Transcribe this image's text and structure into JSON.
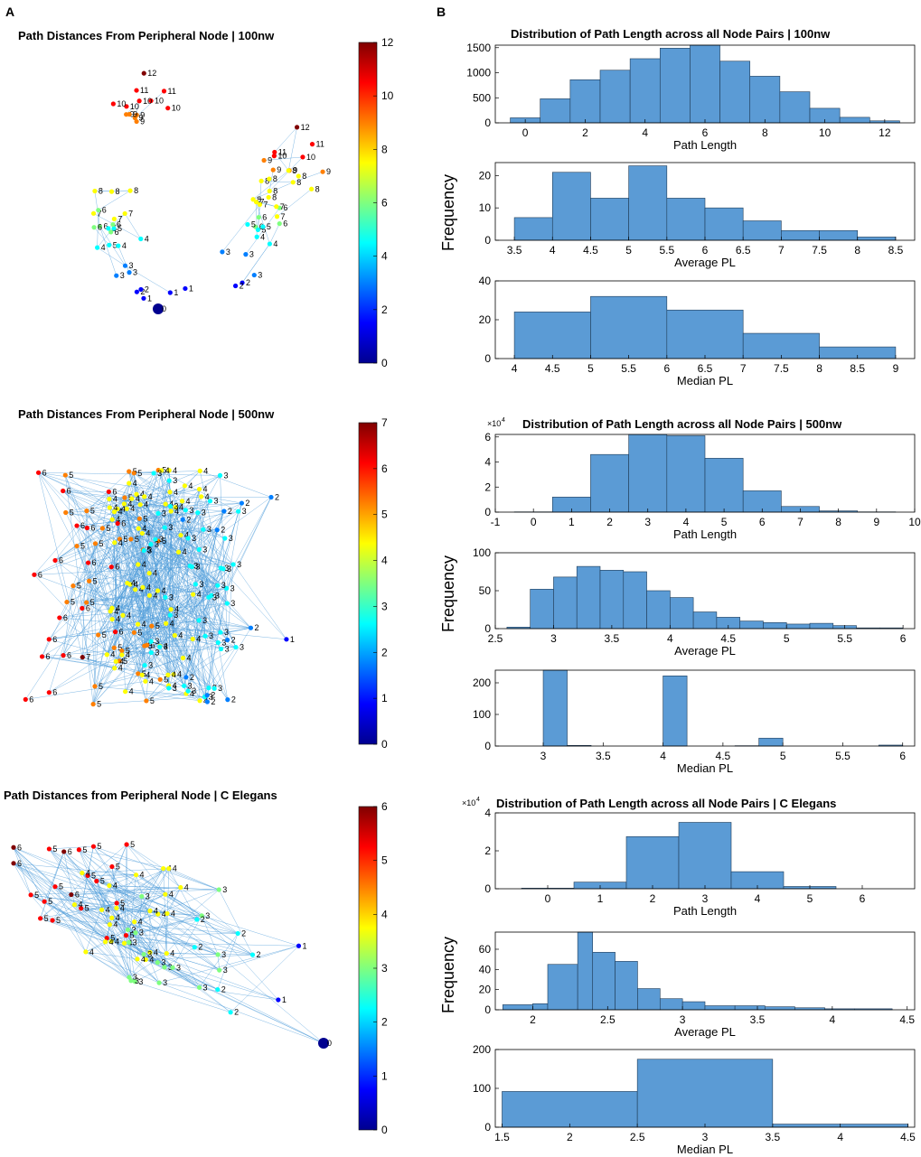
{
  "panel_labels": {
    "a": "A",
    "b": "B"
  },
  "colormap": [
    "#00008f",
    "#0000ff",
    "#007fff",
    "#00ffff",
    "#7fff7f",
    "#ffff00",
    "#ff7f00",
    "#ff0000",
    "#800000"
  ],
  "bar_color": "#5b9bd5",
  "edge_color": "#4a9ad8",
  "chart_data": [
    {
      "type": "network",
      "id": "net100",
      "title": "Path Distances From Peripheral Node | 100nw",
      "colorbar": {
        "min": 0,
        "max": 12,
        "ticks": [
          "0",
          "2",
          "4",
          "6",
          "8",
          "10",
          "12"
        ]
      },
      "node_labels": [
        "12",
        "11",
        "11",
        "10",
        "10",
        "10",
        "10",
        "10",
        "9",
        "9",
        "9",
        "9",
        "9",
        "8",
        "8",
        "8",
        "8",
        "8",
        "8",
        "8",
        "7",
        "7",
        "7",
        "7",
        "6",
        "6",
        "6",
        "6",
        "6",
        "6",
        "5",
        "5",
        "5",
        "5",
        "5",
        "5",
        "4",
        "4",
        "4",
        "4",
        "4",
        "3",
        "3",
        "3",
        "3",
        "3",
        "3",
        "2",
        "2",
        "2",
        "2",
        "1",
        "1",
        "1",
        "0",
        "12",
        "11",
        "11",
        "10",
        "10",
        "9",
        "9",
        "9",
        "9",
        "8",
        "8",
        "8",
        "8",
        "8",
        "7",
        "7",
        "7",
        "6",
        "6",
        "6"
      ]
    },
    {
      "type": "histogram",
      "id": "h100_pl",
      "title": "Distribution of Path Length across all Node Pairs | 100nw",
      "xlabel": "Path Length",
      "xlim": [
        -1,
        13
      ],
      "ylim": [
        0,
        1550
      ],
      "xticks": [
        0,
        2,
        4,
        6,
        8,
        10,
        12
      ],
      "yticks": [
        0,
        500,
        1000,
        1500
      ],
      "edges": [
        -0.5,
        0.5,
        1.5,
        2.5,
        3.5,
        4.5,
        5.5,
        6.5,
        7.5,
        8.5,
        9.5,
        10.5,
        11.5,
        12.5
      ],
      "values": [
        100,
        480,
        860,
        1050,
        1280,
        1490,
        1550,
        1230,
        930,
        620,
        290,
        110,
        40
      ]
    },
    {
      "type": "histogram",
      "id": "h100_avg",
      "title": "",
      "xlabel": "Average PL",
      "xlim": [
        3.25,
        8.75
      ],
      "ylim": [
        0,
        24
      ],
      "xticks": [
        3.5,
        4,
        4.5,
        5,
        5.5,
        6,
        6.5,
        7,
        7.5,
        8,
        8.5
      ],
      "yticks": [
        0,
        10,
        20
      ],
      "edges": [
        3.5,
        4,
        4.5,
        5,
        5.5,
        6,
        6.5,
        7,
        7.5,
        8,
        8.5
      ],
      "values": [
        7,
        21,
        13,
        23,
        13,
        10,
        6,
        3,
        3,
        1
      ]
    },
    {
      "type": "histogram",
      "id": "h100_med",
      "title": "",
      "xlabel": "Median PL",
      "xlim": [
        3.75,
        9.25
      ],
      "ylim": [
        0,
        40
      ],
      "xticks": [
        4,
        4.5,
        5,
        5.5,
        6,
        6.5,
        7,
        7.5,
        8,
        8.5,
        9
      ],
      "yticks": [
        0,
        20,
        40
      ],
      "edges": [
        4,
        5,
        6,
        7,
        8,
        9
      ],
      "values": [
        24,
        32,
        25,
        13,
        6
      ]
    },
    {
      "type": "network",
      "id": "net500",
      "title": "Path Distances From Peripheral Node | 500nw",
      "colorbar": {
        "min": 0,
        "max": 7,
        "ticks": [
          "0",
          "1",
          "2",
          "3",
          "4",
          "5",
          "6",
          "7"
        ]
      },
      "node_labels": [
        "7",
        "6",
        "6",
        "6",
        "6",
        "6",
        "6",
        "6",
        "6",
        "6",
        "6",
        "6",
        "6",
        "6",
        "6",
        "6",
        "6",
        "6",
        "6",
        "5",
        "5",
        "5",
        "5",
        "5",
        "5",
        "5",
        "5",
        "5",
        "5",
        "5",
        "5",
        "5",
        "5",
        "5",
        "5",
        "5",
        "5",
        "5",
        "5",
        "5",
        "5",
        "5",
        "5",
        "5",
        "5",
        "5",
        "5",
        "5",
        "5",
        "5",
        "5",
        "4",
        "4",
        "4",
        "4",
        "4",
        "4",
        "4",
        "4",
        "4",
        "4",
        "4",
        "4",
        "4",
        "4",
        "4",
        "4",
        "4",
        "4",
        "4",
        "4",
        "4",
        "4",
        "4",
        "4",
        "4",
        "4",
        "4",
        "4",
        "4",
        "4",
        "4",
        "4",
        "4",
        "4",
        "4",
        "4",
        "4",
        "4",
        "4",
        "4",
        "4",
        "4",
        "4",
        "4",
        "4",
        "4",
        "4",
        "4",
        "4",
        "4",
        "4",
        "4",
        "4",
        "4",
        "4",
        "4",
        "4",
        "4",
        "4",
        "4",
        "3",
        "3",
        "3",
        "3",
        "3",
        "3",
        "3",
        "3",
        "3",
        "3",
        "3",
        "3",
        "3",
        "3",
        "3",
        "3",
        "3",
        "3",
        "3",
        "3",
        "3",
        "3",
        "3",
        "3",
        "3",
        "3",
        "3",
        "3",
        "3",
        "3",
        "3",
        "3",
        "3",
        "3",
        "3",
        "3",
        "3",
        "3",
        "3",
        "3",
        "3",
        "3",
        "3",
        "3",
        "3",
        "3",
        "2",
        "2",
        "2",
        "2",
        "2",
        "2",
        "2",
        "2",
        "2",
        "2",
        "2",
        "1"
      ]
    },
    {
      "type": "histogram",
      "id": "h500_pl",
      "title": "Distribution of Path Length across all Node Pairs | 500nw",
      "xlabel": "Path Length",
      "exponent_label": "×10",
      "exponent_power": "4",
      "xlim": [
        -1,
        10
      ],
      "ylim": [
        0,
        6.2
      ],
      "xticks": [
        -1,
        0,
        1,
        2,
        3,
        4,
        5,
        6,
        7,
        8,
        9,
        10
      ],
      "yticks": [
        0,
        2,
        4,
        6
      ],
      "edges": [
        -0.5,
        0.5,
        1.5,
        2.5,
        3.5,
        4.5,
        5.5,
        6.5,
        7.5,
        8.5,
        9.5
      ],
      "values": [
        0.02,
        1.2,
        4.6,
        6.3,
        6.1,
        4.3,
        1.7,
        0.45,
        0.1,
        0.02
      ]
    },
    {
      "type": "histogram",
      "id": "h500_avg",
      "title": "",
      "xlabel": "Average PL",
      "xlim": [
        2.5,
        6.1
      ],
      "ylim": [
        0,
        100
      ],
      "xticks": [
        2.5,
        3,
        3.5,
        4,
        4.5,
        5,
        5.5,
        6
      ],
      "yticks": [
        0,
        50,
        100
      ],
      "edges": [
        2.6,
        2.8,
        3.0,
        3.2,
        3.4,
        3.6,
        3.8,
        4.0,
        4.2,
        4.4,
        4.6,
        4.8,
        5.0,
        5.2,
        5.4,
        5.6,
        5.8,
        6.0
      ],
      "values": [
        2,
        52,
        68,
        82,
        77,
        75,
        50,
        41,
        22,
        15,
        10,
        8,
        6,
        7,
        4,
        1,
        1
      ]
    },
    {
      "type": "histogram",
      "id": "h500_med",
      "title": "",
      "xlabel": "Median PL",
      "xlim": [
        2.6,
        6.1
      ],
      "ylim": [
        0,
        240
      ],
      "xticks": [
        3,
        3.5,
        4,
        4.5,
        5,
        5.5,
        6
      ],
      "yticks": [
        0,
        100,
        200
      ],
      "edges": [
        2.8,
        3.0,
        3.2,
        3.4,
        3.6,
        3.8,
        4.0,
        4.2,
        4.4,
        4.6,
        4.8,
        5.0,
        5.2,
        5.4,
        5.6,
        5.8,
        6.0
      ],
      "values": [
        0,
        240,
        2,
        0,
        0,
        0,
        222,
        0,
        0,
        1,
        25,
        0,
        0,
        0,
        0,
        3
      ]
    },
    {
      "type": "network",
      "id": "netcel",
      "title": "Path Distances from Peripheral Node | C Elegans",
      "colorbar": {
        "min": 0,
        "max": 6,
        "ticks": [
          "0",
          "1",
          "2",
          "3",
          "4",
          "5",
          "6"
        ]
      },
      "node_labels": [
        "6",
        "6",
        "6",
        "6",
        "5",
        "5",
        "5",
        "5",
        "5",
        "5",
        "5",
        "5",
        "5",
        "5",
        "5",
        "5",
        "5",
        "5",
        "5",
        "5",
        "4",
        "4",
        "4",
        "4",
        "4",
        "4",
        "4",
        "4",
        "4",
        "4",
        "4",
        "4",
        "4",
        "4",
        "4",
        "4",
        "4",
        "4",
        "4",
        "4",
        "4",
        "4",
        "4",
        "4",
        "3",
        "3",
        "3",
        "3",
        "3",
        "3",
        "3",
        "3",
        "3",
        "3",
        "3",
        "3",
        "3",
        "3",
        "3",
        "3",
        "3",
        "2",
        "2",
        "2",
        "2",
        "2",
        "2",
        "1",
        "1",
        "0"
      ]
    },
    {
      "type": "histogram",
      "id": "hcel_pl",
      "title": "Distribution of Path Length across all Node Pairs | C Elegans",
      "xlabel": "Path Length",
      "exponent_label": "×10",
      "exponent_power": "4",
      "xlim": [
        -1,
        7
      ],
      "ylim": [
        0,
        4
      ],
      "xticks": [
        0,
        1,
        2,
        3,
        4,
        5,
        6
      ],
      "yticks": [
        0,
        2,
        4
      ],
      "edges": [
        -0.5,
        0.5,
        1.5,
        2.5,
        3.5,
        4.5,
        5.5
      ],
      "values": [
        0.03,
        0.35,
        2.75,
        3.5,
        0.9,
        0.12
      ]
    },
    {
      "type": "histogram",
      "id": "hcel_avg",
      "title": "",
      "xlabel": "Average PL",
      "ylim": [
        0,
        77
      ],
      "xlim": [
        1.75,
        4.55
      ],
      "xticks": [
        2,
        2.5,
        3,
        3.5,
        4,
        4.5
      ],
      "yticks": [
        0,
        20,
        40,
        60
      ],
      "edges": [
        1.8,
        2.0,
        2.1,
        2.3,
        2.4,
        2.55,
        2.7,
        2.85,
        3.0,
        3.15,
        3.35,
        3.55,
        3.75,
        3.95,
        4.15,
        4.4
      ],
      "values": [
        5,
        6,
        45,
        77,
        57,
        48,
        21,
        11,
        8,
        4,
        4,
        3,
        2,
        1,
        1
      ]
    },
    {
      "type": "histogram",
      "id": "hcel_med",
      "title": "",
      "xlabel": "Median PL",
      "xlim": [
        1.45,
        4.55
      ],
      "ylim": [
        0,
        200
      ],
      "xticks": [
        1.5,
        2,
        2.5,
        3,
        3.5,
        4,
        4.5
      ],
      "yticks": [
        0,
        100,
        200
      ],
      "edges": [
        1.5,
        2.5,
        3.5,
        4.5
      ],
      "values": [
        92,
        175,
        8
      ]
    }
  ],
  "ylabels": {
    "frequency": "Frequency"
  }
}
